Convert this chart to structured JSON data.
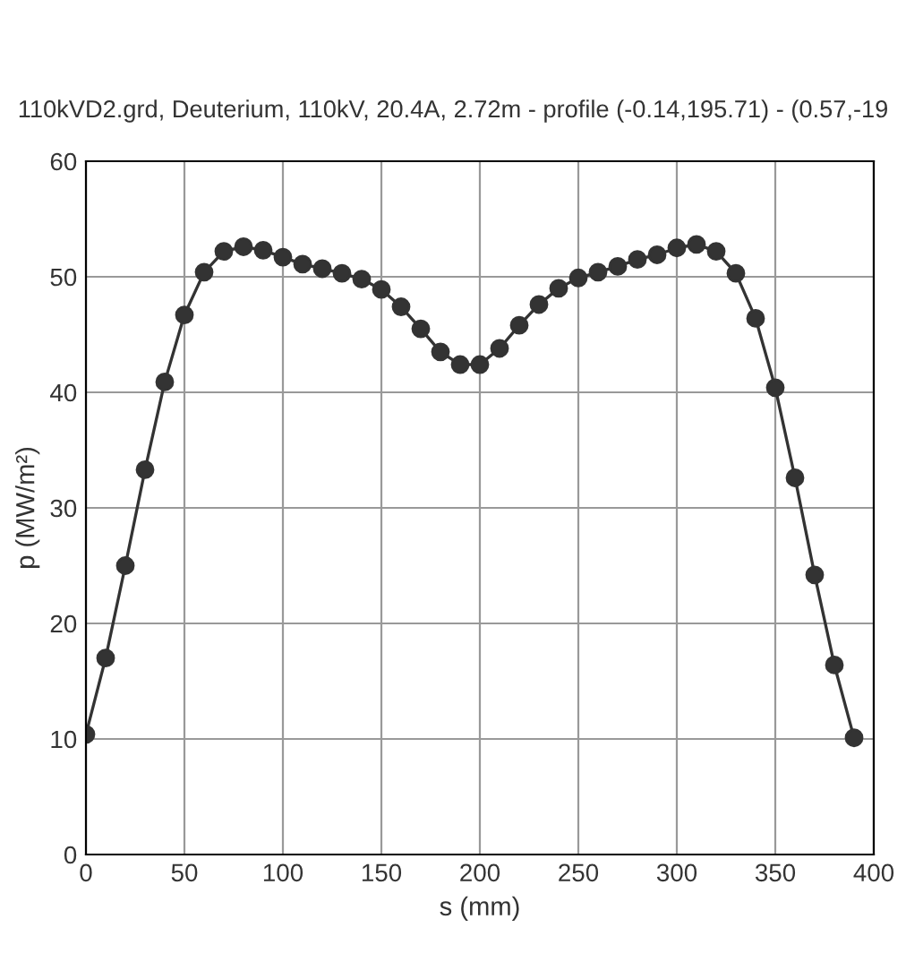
{
  "chart_data": {
    "type": "line",
    "title": "110kVD2.grd, Deuterium, 110kV, 20.4A, 2.72m - profile (-0.14,195.71) - (0.57,-19",
    "xlabel": "s (mm)",
    "ylabel": "p (MW/m²)",
    "x": [
      0,
      10,
      20,
      30,
      40,
      50,
      60,
      70,
      80,
      90,
      100,
      110,
      120,
      130,
      140,
      150,
      160,
      170,
      180,
      190,
      200,
      210,
      220,
      230,
      240,
      250,
      260,
      270,
      280,
      290,
      300,
      310,
      320,
      330,
      340,
      350,
      360,
      370,
      380,
      390
    ],
    "series": [
      {
        "color": "#333333",
        "values": [
          10.4,
          17,
          25,
          33.3,
          40.9,
          46.7,
          50.4,
          52.2,
          52.6,
          52.3,
          51.7,
          51.1,
          50.7,
          50.3,
          49.8,
          48.9,
          47.4,
          45.5,
          43.5,
          42.4,
          42.4,
          43.8,
          45.8,
          47.6,
          49.0,
          49.9,
          50.4,
          50.9,
          51.5,
          51.9,
          52.5,
          52.8,
          52.2,
          50.3,
          46.4,
          40.4,
          32.6,
          24.2,
          16.4,
          10.1
        ]
      }
    ],
    "xlim": [
      0,
      400
    ],
    "xticks": [
      0,
      50,
      100,
      150,
      200,
      250,
      300,
      350,
      400
    ],
    "ylim": [
      0,
      60
    ],
    "yticks": [
      0,
      10,
      20,
      30,
      40,
      50,
      60
    ],
    "grid": true,
    "marker": "circle",
    "line_style": "solid"
  }
}
